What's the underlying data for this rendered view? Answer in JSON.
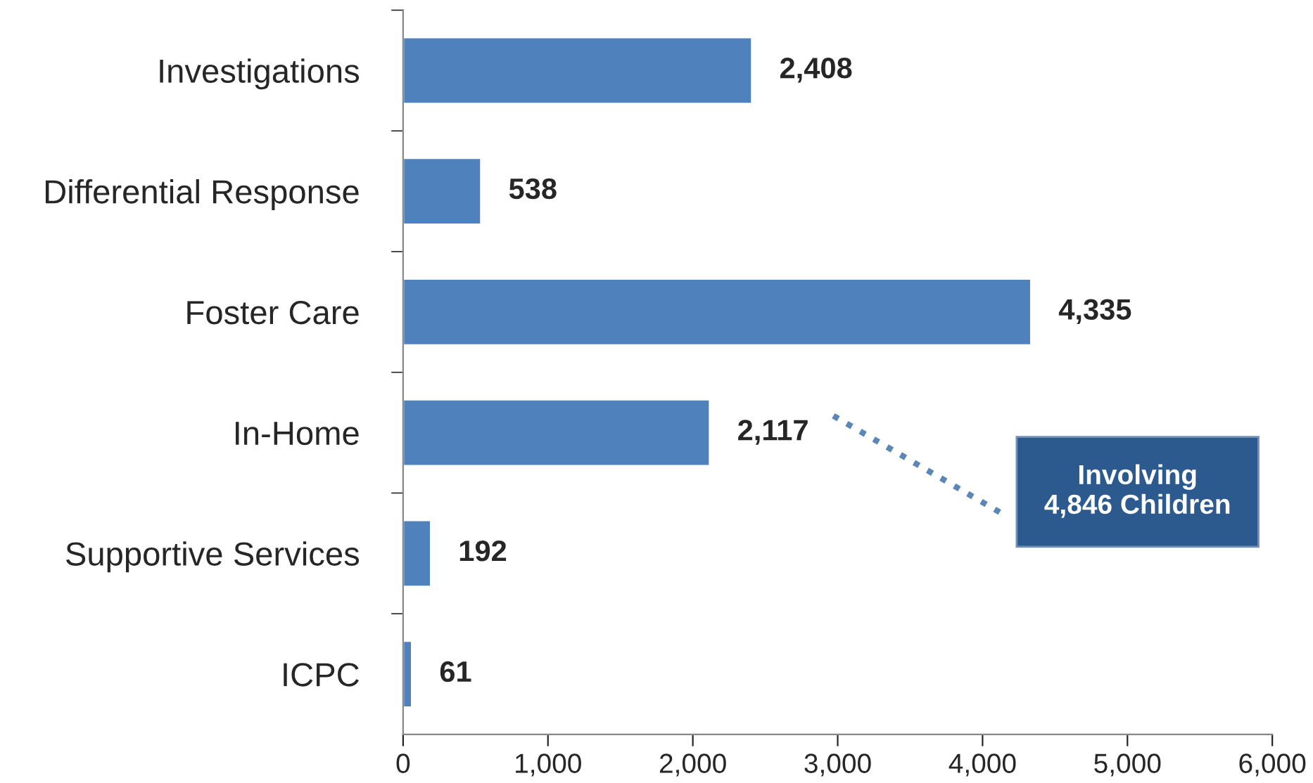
{
  "chart_data": {
    "type": "bar",
    "orientation": "horizontal",
    "categories": [
      "Investigations",
      "Differential Response",
      "Foster Care",
      "In-Home",
      "Supportive Services",
      "ICPC"
    ],
    "values": [
      2408,
      538,
      4335,
      2117,
      192,
      61
    ],
    "value_labels": [
      "2,408",
      "538",
      "4,335",
      "2,117",
      "192",
      "61"
    ],
    "color": "#4f81bd",
    "xlim": [
      0,
      6000
    ],
    "xticks": [
      {
        "value": 0,
        "label": "0"
      },
      {
        "value": 1000,
        "label": "1,000"
      },
      {
        "value": 2000,
        "label": "2,000"
      },
      {
        "value": 3000,
        "label": "3,000"
      },
      {
        "value": 4000,
        "label": "4,000"
      },
      {
        "value": 5000,
        "label": "5,000"
      },
      {
        "value": 6000,
        "label": "6,000"
      }
    ],
    "grid": false,
    "legend": false,
    "annotations": [
      "Involving\n4,846 Children"
    ]
  }
}
